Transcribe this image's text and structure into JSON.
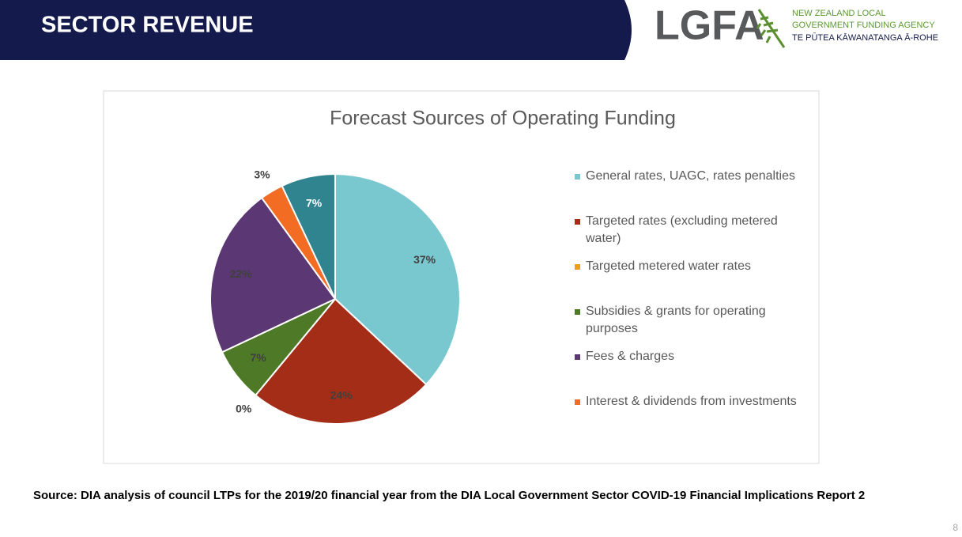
{
  "header": {
    "title": "SECTOR REVENUE",
    "logo": "LGFA",
    "agency_lines": [
      "NEW ZEALAND LOCAL",
      "GOVERNMENT FUNDING AGENCY",
      "TE PŪTEA KĀWANATANGA Ā-ROHE"
    ]
  },
  "chart_data": {
    "type": "pie",
    "title": "Forecast Sources of Operating Funding",
    "categories": [
      "General rates, UAGC, rates penalties",
      "Targeted rates (excluding metered water)",
      "Targeted metered water rates",
      "Subsidies & grants for operating purposes",
      "Fees & charges",
      "Interest & dividends from investments",
      null
    ],
    "values": [
      37,
      24,
      0,
      7,
      22,
      3,
      7
    ],
    "value_labels": [
      "37%",
      "24%",
      "0%",
      "7%",
      "22%",
      "3%",
      "7%"
    ],
    "colors": [
      "#7ac8cf",
      "#a42d17",
      "#e8a11c",
      "#4e7a27",
      "#5b3874",
      "#f26d23",
      "#2f8490"
    ],
    "legend": "right"
  },
  "source": "Source: DIA analysis of council LTPs for the 2019/20 financial year from the DIA Local Government Sector COVID-19 Financial Implications Report 2",
  "page_number": 8
}
